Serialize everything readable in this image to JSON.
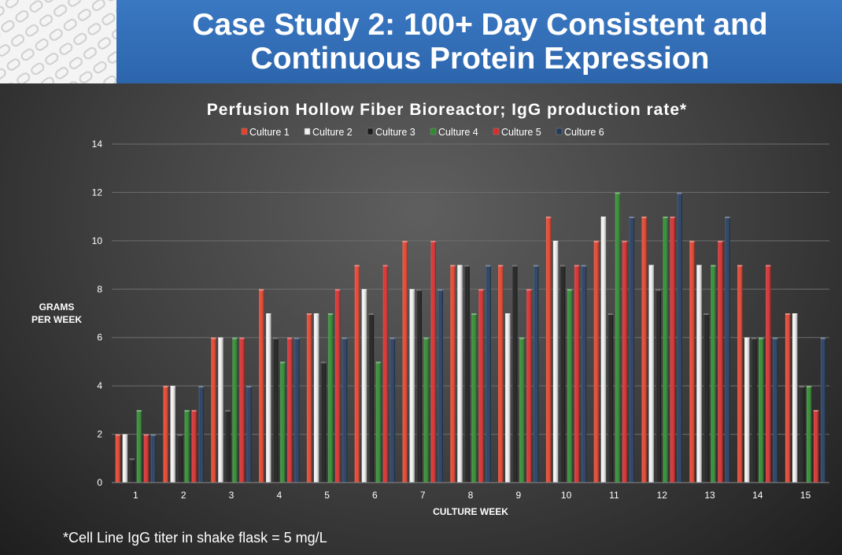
{
  "slide": {
    "title_line1": "Case Study 2: 100+ Day Consistent and",
    "title_line2": "Continuous Protein Expression",
    "footnote": "*Cell Line IgG titer in shake flask = 5 mg/L"
  },
  "colors": {
    "header_blue": "#2f6cb5",
    "background": "#3a3a3a",
    "text": "#ffffff"
  },
  "chart_data": {
    "type": "bar",
    "title": "Perfusion Hollow Fiber Bioreactor; IgG production rate*",
    "xlabel": "CULTURE WEEK",
    "ylabel_line1": "GRAMS",
    "ylabel_line2": "PER WEEK",
    "ylim": [
      0,
      14
    ],
    "yticks": [
      0,
      2,
      4,
      6,
      8,
      10,
      12,
      14
    ],
    "grid": true,
    "legend_position": "top",
    "categories": [
      "1",
      "2",
      "3",
      "4",
      "5",
      "6",
      "7",
      "8",
      "9",
      "10",
      "11",
      "12",
      "13",
      "14",
      "15"
    ],
    "series": [
      {
        "name": "Culture 1",
        "color": "#e8412a",
        "values": [
          2,
          4,
          6,
          8,
          7,
          9,
          10,
          9,
          9,
          11,
          10,
          11,
          10,
          9,
          7
        ]
      },
      {
        "name": "Culture 2",
        "color": "#f2f2f2",
        "values": [
          2,
          4,
          6,
          7,
          7,
          8,
          8,
          9,
          7,
          10,
          11,
          9,
          9,
          6,
          7
        ]
      },
      {
        "name": "Culture 3",
        "color": "#1a1a1a",
        "values": [
          1,
          2,
          3,
          6,
          5,
          7,
          8,
          9,
          9,
          9,
          7,
          8,
          7,
          6,
          4
        ]
      },
      {
        "name": "Culture 4",
        "color": "#2e8b2e",
        "values": [
          3,
          3,
          6,
          5,
          7,
          5,
          6,
          7,
          6,
          8,
          12,
          11,
          9,
          6,
          4
        ]
      },
      {
        "name": "Culture 5",
        "color": "#d92b2b",
        "values": [
          2,
          3,
          6,
          6,
          8,
          9,
          10,
          8,
          8,
          9,
          10,
          11,
          10,
          9,
          3
        ]
      },
      {
        "name": "Culture 6",
        "color": "#223a5e",
        "values": [
          2,
          4,
          4,
          6,
          6,
          6,
          8,
          9,
          9,
          9,
          11,
          12,
          11,
          6,
          6
        ]
      }
    ]
  }
}
